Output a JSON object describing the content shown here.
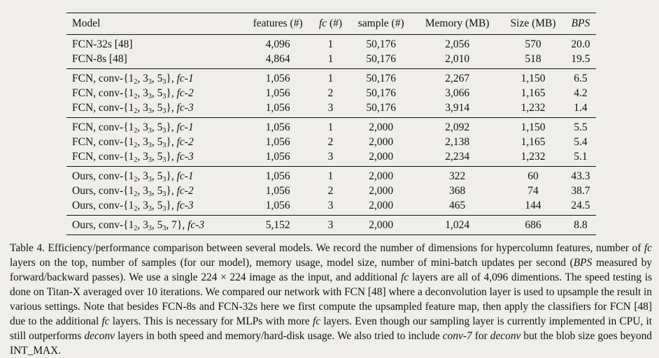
{
  "table": {
    "headers": [
      "Model",
      "features (#)",
      "fc (#)",
      "sample (#)",
      "Memory (MB)",
      "Size (MB)",
      "BPS"
    ],
    "groups": [
      [
        {
          "model": "FCN-32s [48]",
          "features": "4,096",
          "fc": "1",
          "sample": "50,176",
          "memory": "2,056",
          "size": "570",
          "bps": "20.0"
        },
        {
          "model": "FCN-8s [48]",
          "features": "4,864",
          "fc": "1",
          "sample": "50,176",
          "memory": "2,010",
          "size": "518",
          "bps": "19.5"
        }
      ],
      [
        {
          "prefix": "FCN, conv-{",
          "suffix": "}, ",
          "fclabel": "fc-1",
          "features": "1,056",
          "fc": "1",
          "sample": "50,176",
          "memory": "2,267",
          "size": "1,150",
          "bps": "6.5"
        },
        {
          "prefix": "FCN, conv-{",
          "suffix": "}, ",
          "fclabel": "fc-2",
          "features": "1,056",
          "fc": "2",
          "sample": "50,176",
          "memory": "3,066",
          "size": "1,165",
          "bps": "4.2"
        },
        {
          "prefix": "FCN, conv-{",
          "suffix": "}, ",
          "fclabel": "fc-3",
          "features": "1,056",
          "fc": "3",
          "sample": "50,176",
          "memory": "3,914",
          "size": "1,232",
          "bps": "1.4"
        }
      ],
      [
        {
          "prefix": "FCN, conv-{",
          "suffix": "}, ",
          "fclabel": "fc-1",
          "features": "1,056",
          "fc": "1",
          "sample": "2,000",
          "memory": "2,092",
          "size": "1,150",
          "bps": "5.5"
        },
        {
          "prefix": "FCN, conv-{",
          "suffix": "}, ",
          "fclabel": "fc-2",
          "features": "1,056",
          "fc": "2",
          "sample": "2,000",
          "memory": "2,138",
          "size": "1,165",
          "bps": "5.4"
        },
        {
          "prefix": "FCN, conv-{",
          "suffix": "}, ",
          "fclabel": "fc-3",
          "features": "1,056",
          "fc": "3",
          "sample": "2,000",
          "memory": "2,234",
          "size": "1,232",
          "bps": "5.1"
        }
      ],
      [
        {
          "prefix": "Ours, conv-{",
          "suffix": "}, ",
          "fclabel": "fc-1",
          "features": "1,056",
          "fc": "1",
          "sample": "2,000",
          "memory": "322",
          "size": "60",
          "bps": "43.3"
        },
        {
          "prefix": "Ours, conv-{",
          "suffix": "}, ",
          "fclabel": "fc-2",
          "features": "1,056",
          "fc": "2",
          "sample": "2,000",
          "memory": "368",
          "size": "74",
          "bps": "38.7"
        },
        {
          "prefix": "Ours, conv-{",
          "suffix": "}, ",
          "fclabel": "fc-3",
          "features": "1,056",
          "fc": "3",
          "sample": "2,000",
          "memory": "465",
          "size": "144",
          "bps": "24.5"
        }
      ],
      [
        {
          "prefix": "Ours, conv-{",
          "suffix": ", 7}, ",
          "fclabel": "fc-3",
          "features": "5,152",
          "fc": "3",
          "sample": "2,000",
          "memory": "1,024",
          "size": "686",
          "bps": "8.8"
        }
      ]
    ],
    "conv_layers": [
      {
        "base": "1",
        "sub": "2"
      },
      {
        "base": "3",
        "sub": "3"
      },
      {
        "base": "5",
        "sub": "3"
      }
    ]
  },
  "caption": {
    "s1": "Table 4. Efficiency/performance comparison between several models. We record the number of dimensions for hypercolumn features, number of ",
    "fc1": "fc",
    "s2": " layers on the top, number of samples (for our model), memory usage, model size, number of mini-batch updates per second (",
    "bps": "BPS",
    "s3": " measured by forward/backward passes). We use a single 224 × 224 image as the input, and additional ",
    "fc2": "fc",
    "s4": " layers are all of 4,096 dimentions. The speed testing is done on Titan-X averaged over 10 iterations. We compared our network with FCN [48] where a deconvolution layer is used to upsample the result in various settings. Note that besides FCN-8s and FCN-32s here we first compute the upsampled feature map, then apply the classifiers for FCN [48] due to the additional ",
    "fc3": "fc",
    "s5": " layers. This is necessary for MLPs with more ",
    "fc4": "fc",
    "s6": " layers. Even though our sampling layer is currently implemented in CPU, it still outperforms ",
    "deconv1": "deconv",
    "s7": " layers in both speed and memory/hard-disk usage. We also tried to include ",
    "conv7": "conv-7",
    "s8": " for ",
    "deconv2": "deconv",
    "s9": " but the blob size goes beyond INT_MAX."
  }
}
